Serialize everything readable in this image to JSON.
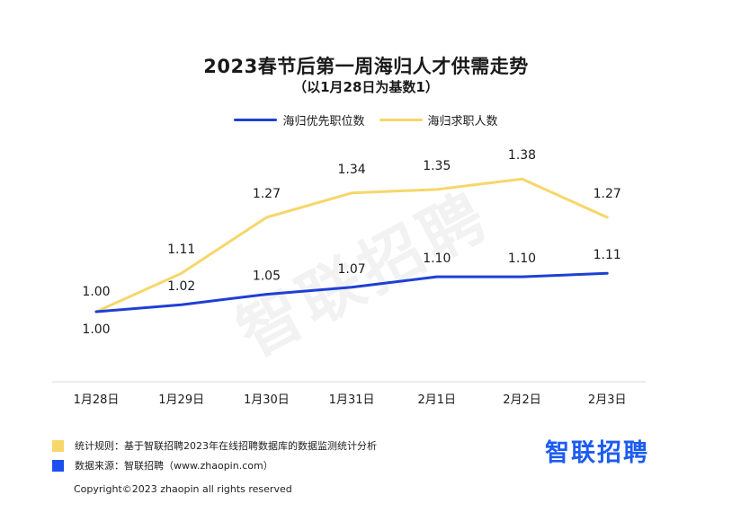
{
  "chart_data": {
    "type": "line",
    "title": "2023春节后第一周海归人才供需走势",
    "subtitle": "（以1月28日为基数1）",
    "categories": [
      "1月28日",
      "1月29日",
      "1月30日",
      "1月31日",
      "2月1日",
      "2月2日",
      "2月3日"
    ],
    "ylim": [
      0.85,
      1.45
    ],
    "grid": false,
    "legend_position": "top-center",
    "series": [
      {
        "name": "海归优先职位数",
        "color": "#1f3fd4",
        "values": [
          1.0,
          1.02,
          1.05,
          1.07,
          1.1,
          1.1,
          1.11
        ],
        "labels": [
          "1.00",
          "1.02",
          "1.05",
          "1.07",
          "1.10",
          "1.10",
          "1.11"
        ]
      },
      {
        "name": "海归求职人数",
        "color": "#f7d66a",
        "values": [
          1.0,
          1.11,
          1.27,
          1.34,
          1.35,
          1.38,
          1.27
        ],
        "labels": [
          "1.00",
          "1.11",
          "1.27",
          "1.34",
          "1.35",
          "1.38",
          "1.27"
        ]
      }
    ]
  },
  "notes": [
    {
      "color": "#f7d66a",
      "text": "统计规则：基于智联招聘2023年在线招聘数据库的数据监测统计分析"
    },
    {
      "color": "#1d4fef",
      "text": "数据来源：智联招聘（www.zhaopin.com）"
    }
  ],
  "brand": "智联招聘",
  "watermark": "智联招聘",
  "copyright": "Copyright©2023 zhaopin all rights reserved"
}
